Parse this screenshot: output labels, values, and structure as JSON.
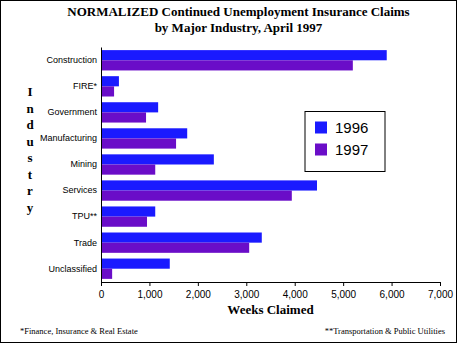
{
  "chart_data": {
    "type": "bar",
    "orientation": "horizontal",
    "title": "NORMALIZED Continued Unemployment Insurance Claims",
    "subtitle": "by Major Industry, April 1997",
    "x_label": "Weeks Claimed",
    "y_label": "Industry",
    "categories": [
      "Construction",
      "FIRE*",
      "Government",
      "Manufacturing",
      "Mining",
      "Services",
      "TPU**",
      "Trade",
      "Unclassified"
    ],
    "series": [
      {
        "name": "1996",
        "color": "#1a1aff",
        "values": [
          5900,
          370,
          1180,
          1780,
          2330,
          4460,
          1120,
          3320,
          1420
        ]
      },
      {
        "name": "1997",
        "color": "#6a0dc8",
        "values": [
          5200,
          270,
          930,
          1550,
          1120,
          3940,
          950,
          3060,
          230
        ]
      }
    ],
    "xlim": [
      0,
      7000
    ],
    "xticks": [
      0,
      {
        "value": 1000,
        "label": "1,000"
      },
      {
        "value": 2000,
        "label": "2,000"
      },
      {
        "value": 3000,
        "label": "3,000"
      },
      {
        "value": 4000,
        "label": "4,000"
      },
      {
        "value": 5000,
        "label": "5,000"
      },
      {
        "value": 6000,
        "label": "6,000"
      },
      {
        "value": 7000,
        "label": "7,000"
      }
    ],
    "grid": false,
    "legend": "right",
    "annotations": [
      "*Finance, Insurance & Real Estate",
      "**Transportation & Public Utilities"
    ]
  }
}
